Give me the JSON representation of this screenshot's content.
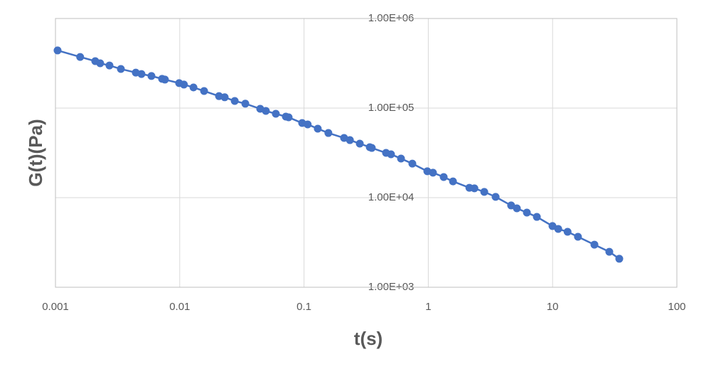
{
  "chart_data": {
    "type": "line",
    "x_label": "t(s)",
    "y_label": "G(t)(Pa)",
    "x": [
      0.00104,
      0.00158,
      0.00209,
      0.00229,
      0.00272,
      0.00336,
      0.00443,
      0.00492,
      0.00592,
      0.00721,
      0.0076,
      0.00989,
      0.0108,
      0.0129,
      0.0157,
      0.0207,
      0.023,
      0.0277,
      0.0337,
      0.0444,
      0.0493,
      0.0593,
      0.0714,
      0.0752,
      0.0966,
      0.107,
      0.129,
      0.157,
      0.21,
      0.234,
      0.281,
      0.338,
      0.351,
      0.457,
      0.501,
      0.603,
      0.744,
      0.982,
      1.09,
      1.33,
      1.58,
      2.14,
      2.35,
      2.82,
      3.48,
      4.64,
      5.16,
      6.21,
      7.47,
      9.98,
      11.1,
      13.2,
      16.0,
      21.7,
      28.6,
      34.4
    ],
    "values": [
      440000,
      372000,
      334000,
      316000,
      299000,
      273000,
      249000,
      240000,
      228000,
      212000,
      208000,
      190000,
      183000,
      170000,
      155000,
      136000,
      132000,
      120000,
      112000,
      98200,
      92900,
      86400,
      80300,
      78800,
      68100,
      65700,
      58900,
      52700,
      46400,
      43900,
      40100,
      36600,
      35900,
      31600,
      30500,
      27300,
      24000,
      19700,
      19000,
      17000,
      15200,
      12900,
      12700,
      11600,
      10200,
      8190,
      7600,
      6810,
      6100,
      4820,
      4480,
      4160,
      3660,
      2990,
      2490,
      2080
    ],
    "color": "#4472c4",
    "xlog": true,
    "ylog": true,
    "grid": true,
    "xlim": [
      0.001,
      100
    ],
    "xticks": [
      0.001,
      0.01,
      0.1,
      1,
      10,
      100
    ],
    "ylim": [
      1000,
      1000000
    ],
    "yticks": [
      {
        "value": 1000,
        "label": "1.00E+03"
      },
      {
        "value": 10000,
        "label": "1.00E+04"
      },
      {
        "value": 100000,
        "label": "1.00E+05"
      },
      {
        "value": 1000000,
        "label": "1.00E+06"
      }
    ]
  }
}
